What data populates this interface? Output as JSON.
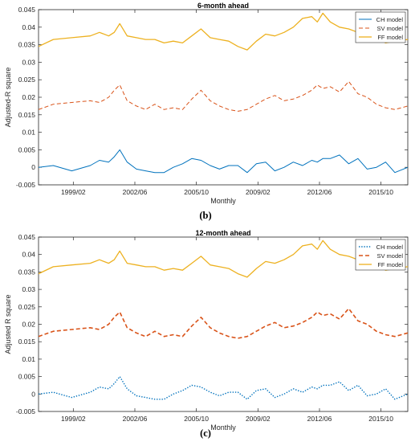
{
  "colors": {
    "ch": "#0072BD",
    "sv": "#D95319",
    "ff": "#EDB120",
    "axis": "#262626"
  },
  "panels": [
    {
      "caption_label": "(b)",
      "chart_data": {
        "type": "line",
        "title": "6-month ahead",
        "xlabel": "Monthly",
        "ylabel": "Adjusted-R square",
        "xlim": [
          1997.2,
          2017.2
        ],
        "ylim": [
          -0.005,
          0.045
        ],
        "yticks": [
          -0.005,
          0,
          0.005,
          0.01,
          0.015,
          0.02,
          0.025,
          0.03,
          0.035,
          0.04,
          0.045
        ],
        "ytick_labels": [
          "-0.005",
          "0",
          "0.005",
          "0.01",
          "0.015",
          "0.02",
          "0.025",
          "0.03",
          "0.035",
          "0.04",
          "0.045"
        ],
        "xticks": [
          1999.083,
          2002.417,
          2005.75,
          2009.083,
          2012.417,
          2015.75
        ],
        "xtick_labels": [
          "1999/02",
          "2002/06",
          "2005/10",
          "2009/02",
          "2012/06",
          "2015/10"
        ],
        "legend_position": "top-right",
        "x": [
          1997.2,
          1998.0,
          1999.0,
          2000.0,
          2000.5,
          2001.0,
          2001.3,
          2001.6,
          2002.0,
          2002.5,
          2003.0,
          2003.5,
          2004.0,
          2004.5,
          2005.0,
          2005.5,
          2006.0,
          2006.5,
          2007.0,
          2007.5,
          2008.0,
          2008.5,
          2009.0,
          2009.5,
          2010.0,
          2010.5,
          2011.0,
          2011.5,
          2012.0,
          2012.3,
          2012.6,
          2013.0,
          2013.5,
          2014.0,
          2014.5,
          2015.0,
          2015.5,
          2016.0,
          2016.5,
          2017.2
        ],
        "series": [
          {
            "name": "CH model",
            "style": "solid",
            "line_width": 1,
            "values": [
              0.0,
              0.0005,
              -0.001,
              0.0005,
              0.002,
              0.0015,
              0.003,
              0.005,
              0.0015,
              -0.0005,
              -0.001,
              -0.0015,
              -0.0015,
              0.0,
              0.001,
              0.0025,
              0.002,
              0.0005,
              -0.0005,
              0.0005,
              0.0005,
              -0.0015,
              0.001,
              0.0015,
              -0.001,
              0.0,
              0.0015,
              0.0005,
              0.002,
              0.0015,
              0.0025,
              0.0025,
              0.0035,
              0.001,
              0.0025,
              -0.0005,
              0.0,
              0.0015,
              -0.0015,
              0.0
            ]
          },
          {
            "name": "SV model",
            "style": "dashed",
            "line_width": 1,
            "values": [
              0.0165,
              0.018,
              0.0185,
              0.019,
              0.0185,
              0.02,
              0.022,
              0.0235,
              0.019,
              0.0175,
              0.0165,
              0.018,
              0.0165,
              0.017,
              0.0165,
              0.0195,
              0.022,
              0.019,
              0.0175,
              0.0165,
              0.016,
              0.0165,
              0.018,
              0.0195,
              0.0205,
              0.019,
              0.0195,
              0.0205,
              0.022,
              0.0235,
              0.0225,
              0.023,
              0.0215,
              0.0245,
              0.021,
              0.02,
              0.018,
              0.017,
              0.0165,
              0.0175
            ]
          },
          {
            "name": "FF model",
            "style": "solid",
            "line_width": 1.3,
            "values": [
              0.0345,
              0.0365,
              0.037,
              0.0375,
              0.0385,
              0.0375,
              0.0385,
              0.041,
              0.0375,
              0.037,
              0.0365,
              0.0365,
              0.0355,
              0.036,
              0.0355,
              0.0375,
              0.0395,
              0.037,
              0.0365,
              0.036,
              0.0345,
              0.0335,
              0.036,
              0.038,
              0.0375,
              0.0385,
              0.04,
              0.0425,
              0.043,
              0.0415,
              0.044,
              0.0415,
              0.04,
              0.0395,
              0.0385,
              0.0385,
              0.037,
              0.0355,
              0.036,
              0.0365
            ]
          }
        ]
      }
    },
    {
      "caption_label": "(c)",
      "chart_data": {
        "type": "line",
        "title": "12-month ahead",
        "xlabel": "Monthly",
        "ylabel": "Adjusted R square",
        "xlim": [
          1997.2,
          2017.2
        ],
        "ylim": [
          -0.005,
          0.045
        ],
        "yticks": [
          -0.005,
          0,
          0.005,
          0.01,
          0.015,
          0.02,
          0.025,
          0.03,
          0.035,
          0.04,
          0.045
        ],
        "ytick_labels": [
          "-0.005",
          "0",
          "0.005",
          "0.01",
          "0.015",
          "0.02",
          "0.025",
          "0.03",
          "0.035",
          "0.04",
          "0.045"
        ],
        "xticks": [
          1999.083,
          2002.417,
          2005.75,
          2009.083,
          2012.417,
          2015.75
        ],
        "xtick_labels": [
          "1999/02",
          "2002/06",
          "2005/10",
          "2009/02",
          "2012/06",
          "2015/10"
        ],
        "legend_position": "top-right",
        "x": [
          1997.2,
          1998.0,
          1999.0,
          2000.0,
          2000.5,
          2001.0,
          2001.3,
          2001.6,
          2002.0,
          2002.5,
          2003.0,
          2003.5,
          2004.0,
          2004.5,
          2005.0,
          2005.5,
          2006.0,
          2006.5,
          2007.0,
          2007.5,
          2008.0,
          2008.5,
          2009.0,
          2009.5,
          2010.0,
          2010.5,
          2011.0,
          2011.5,
          2012.0,
          2012.3,
          2012.6,
          2013.0,
          2013.5,
          2014.0,
          2014.5,
          2015.0,
          2015.5,
          2016.0,
          2016.5,
          2017.2
        ],
        "series": [
          {
            "name": "CH model",
            "style": "dotted",
            "line_width": 1.4,
            "values": [
              0.0,
              0.0005,
              -0.001,
              0.0005,
              0.002,
              0.0015,
              0.003,
              0.005,
              0.0015,
              -0.0005,
              -0.001,
              -0.0015,
              -0.0015,
              0.0,
              0.001,
              0.0025,
              0.002,
              0.0005,
              -0.0005,
              0.0005,
              0.0005,
              -0.0015,
              0.001,
              0.0015,
              -0.001,
              0.0,
              0.0015,
              0.0005,
              0.002,
              0.0015,
              0.0025,
              0.0025,
              0.0035,
              0.001,
              0.0025,
              -0.0005,
              0.0,
              0.0015,
              -0.0015,
              0.0
            ]
          },
          {
            "name": "SV model",
            "style": "dashed",
            "line_width": 1.6,
            "values": [
              0.0165,
              0.018,
              0.0185,
              0.019,
              0.0185,
              0.02,
              0.022,
              0.0235,
              0.019,
              0.0175,
              0.0165,
              0.018,
              0.0165,
              0.017,
              0.0165,
              0.0195,
              0.022,
              0.019,
              0.0175,
              0.0165,
              0.016,
              0.0165,
              0.018,
              0.0195,
              0.0205,
              0.019,
              0.0195,
              0.0205,
              0.022,
              0.0235,
              0.0225,
              0.023,
              0.0215,
              0.0245,
              0.021,
              0.02,
              0.018,
              0.017,
              0.0165,
              0.0175
            ]
          },
          {
            "name": "FF model",
            "style": "solid",
            "line_width": 1.3,
            "values": [
              0.0345,
              0.0365,
              0.037,
              0.0375,
              0.0385,
              0.0375,
              0.0385,
              0.041,
              0.0375,
              0.037,
              0.0365,
              0.0365,
              0.0355,
              0.036,
              0.0355,
              0.0375,
              0.0395,
              0.037,
              0.0365,
              0.036,
              0.0345,
              0.0335,
              0.036,
              0.038,
              0.0375,
              0.0385,
              0.04,
              0.0425,
              0.043,
              0.0415,
              0.044,
              0.0415,
              0.04,
              0.0395,
              0.0385,
              0.0385,
              0.037,
              0.0355,
              0.036,
              0.0365
            ]
          }
        ]
      }
    }
  ]
}
